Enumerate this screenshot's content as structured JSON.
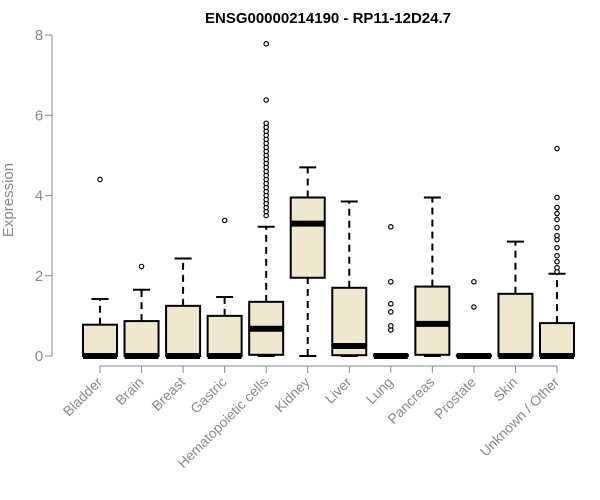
{
  "chart_data": {
    "type": "boxplot",
    "title": "ENSG00000214190 - RP11-12D24.7",
    "xlabel": "",
    "ylabel": "Expression",
    "ylim": [
      0,
      8
    ],
    "yticks": [
      0,
      2,
      4,
      6,
      8
    ],
    "grid": false,
    "categories": [
      "Bladder",
      "Brain",
      "Breast",
      "Gastric",
      "Hematopoietic cells",
      "Kidney",
      "Liver",
      "Lung",
      "Pancreas",
      "Prostate",
      "Skin",
      "Unknown / Other"
    ],
    "boxes": [
      {
        "name": "Bladder",
        "min": 0,
        "q1": 0,
        "median": 0,
        "q3": 0.78,
        "max": 1.42,
        "outliers": [
          4.4
        ]
      },
      {
        "name": "Brain",
        "min": 0,
        "q1": 0,
        "median": 0,
        "q3": 0.87,
        "max": 1.65,
        "outliers": [
          2.23
        ]
      },
      {
        "name": "Breast",
        "min": 0,
        "q1": 0,
        "median": 0,
        "q3": 1.25,
        "max": 2.43,
        "outliers": []
      },
      {
        "name": "Gastric",
        "min": 0,
        "q1": 0,
        "median": 0,
        "q3": 1.0,
        "max": 1.47,
        "outliers": [
          3.38
        ]
      },
      {
        "name": "Hematopoietic cells",
        "min": 0,
        "q1": 0.03,
        "median": 0.68,
        "q3": 1.35,
        "max": 3.22,
        "outliers": [
          3.5,
          3.6,
          3.7,
          3.8,
          3.9,
          4.0,
          4.1,
          4.2,
          4.3,
          4.4,
          4.5,
          4.6,
          4.7,
          4.8,
          4.9,
          5.0,
          5.1,
          5.2,
          5.3,
          5.4,
          5.5,
          5.6,
          5.7,
          5.8,
          6.38,
          7.78
        ]
      },
      {
        "name": "Kidney",
        "min": 0,
        "q1": 1.95,
        "median": 3.3,
        "q3": 3.95,
        "max": 4.7,
        "outliers": []
      },
      {
        "name": "Liver",
        "min": 0,
        "q1": 0.02,
        "median": 0.25,
        "q3": 1.7,
        "max": 3.85,
        "outliers": []
      },
      {
        "name": "Lung",
        "min": 0,
        "q1": 0,
        "median": 0,
        "q3": 0.03,
        "max": 0.03,
        "outliers": [
          0.65,
          0.75,
          1.1,
          1.3,
          1.85,
          3.22
        ]
      },
      {
        "name": "Pancreas",
        "min": 0,
        "q1": 0.03,
        "median": 0.8,
        "q3": 1.73,
        "max": 3.95,
        "outliers": []
      },
      {
        "name": "Prostate",
        "min": 0,
        "q1": 0,
        "median": 0,
        "q3": 0.02,
        "max": 0.02,
        "outliers": [
          1.22,
          1.85
        ]
      },
      {
        "name": "Skin",
        "min": 0,
        "q1": 0,
        "median": 0,
        "q3": 1.55,
        "max": 2.85,
        "outliers": []
      },
      {
        "name": "Unknown / Other",
        "min": 0,
        "q1": 0,
        "median": 0,
        "q3": 0.82,
        "max": 2.05,
        "outliers": [
          2.1,
          2.2,
          2.35,
          2.5,
          2.7,
          2.9,
          3.0,
          3.2,
          3.4,
          3.55,
          3.7,
          3.95,
          5.17
        ]
      }
    ],
    "colors": {
      "box_fill": "#efe8cf",
      "stroke": "#000000",
      "axis": "#8a8a8a"
    }
  }
}
